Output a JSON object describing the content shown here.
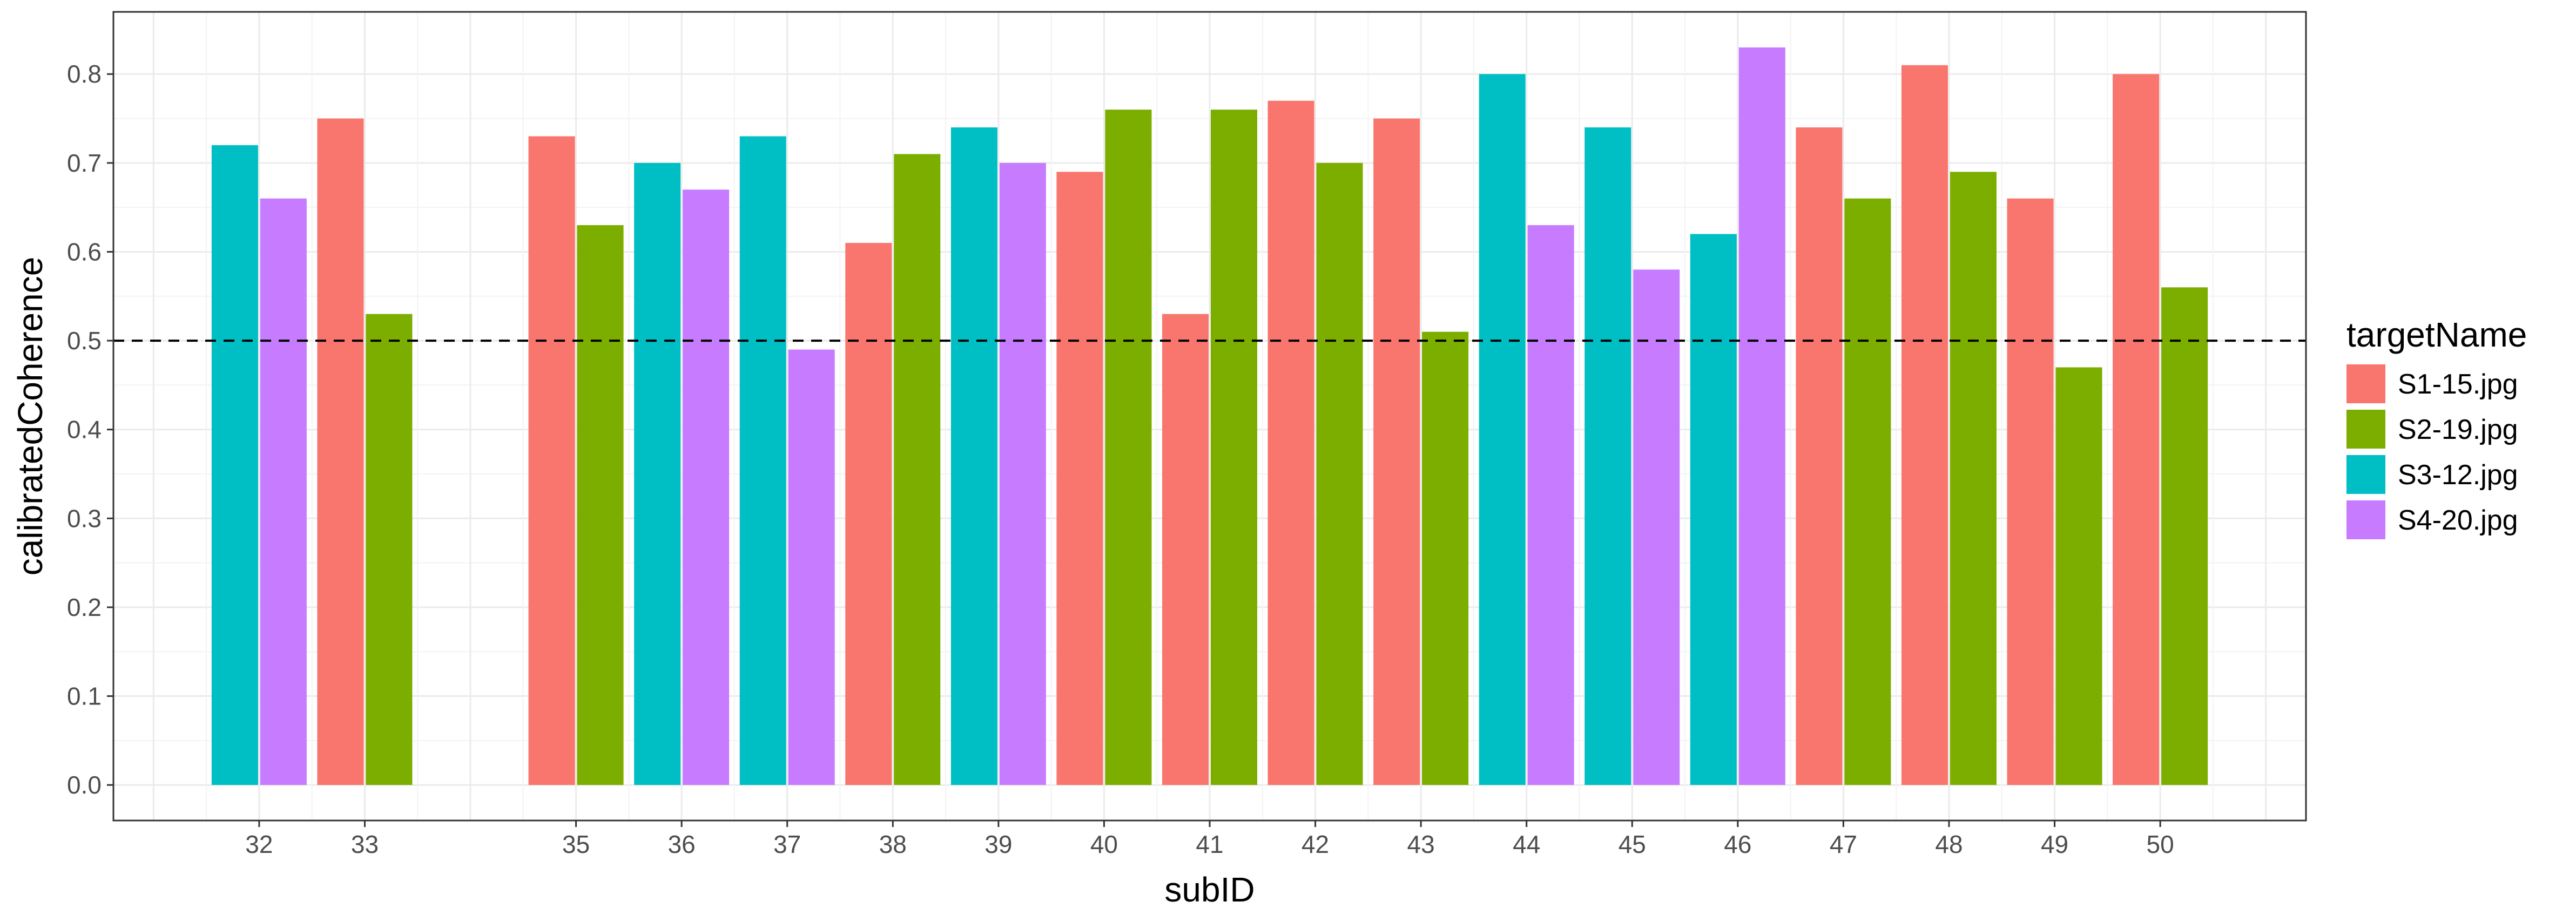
{
  "chart_data": {
    "type": "bar",
    "xlabel": "subID",
    "ylabel": "calibratedCoherence",
    "ylim": [
      -0.04,
      0.87
    ],
    "yticks": [
      "0.0",
      "0.1",
      "0.2",
      "0.3",
      "0.4",
      "0.5",
      "0.6",
      "0.7",
      "0.8"
    ],
    "xlim": [
      30.62,
      51.38
    ],
    "reference_line": {
      "y": 0.5,
      "style": "dashed"
    },
    "grid": true,
    "legend": {
      "title": "targetName",
      "position": "right",
      "entries": [
        {
          "name": "S1-15.jpg",
          "color": "#F8766D"
        },
        {
          "name": "S2-19.jpg",
          "color": "#7CAE00"
        },
        {
          "name": "S3-12.jpg",
          "color": "#00BFC4"
        },
        {
          "name": "S4-20.jpg",
          "color": "#C77CFF"
        }
      ]
    },
    "categories": [
      "32",
      "33",
      "35",
      "36",
      "37",
      "38",
      "39",
      "40",
      "41",
      "42",
      "43",
      "44",
      "45",
      "46",
      "47",
      "48",
      "49",
      "50"
    ],
    "groups": [
      {
        "subID": 32,
        "bars": [
          {
            "series": "S3-12.jpg",
            "value": 0.72
          },
          {
            "series": "S4-20.jpg",
            "value": 0.66
          }
        ]
      },
      {
        "subID": 33,
        "bars": [
          {
            "series": "S1-15.jpg",
            "value": 0.75
          },
          {
            "series": "S2-19.jpg",
            "value": 0.53
          }
        ]
      },
      {
        "subID": 35,
        "bars": [
          {
            "series": "S1-15.jpg",
            "value": 0.73
          },
          {
            "series": "S2-19.jpg",
            "value": 0.63
          }
        ]
      },
      {
        "subID": 36,
        "bars": [
          {
            "series": "S3-12.jpg",
            "value": 0.7
          },
          {
            "series": "S4-20.jpg",
            "value": 0.67
          }
        ]
      },
      {
        "subID": 37,
        "bars": [
          {
            "series": "S3-12.jpg",
            "value": 0.73
          },
          {
            "series": "S4-20.jpg",
            "value": 0.49
          }
        ]
      },
      {
        "subID": 38,
        "bars": [
          {
            "series": "S1-15.jpg",
            "value": 0.61
          },
          {
            "series": "S2-19.jpg",
            "value": 0.71
          }
        ]
      },
      {
        "subID": 39,
        "bars": [
          {
            "series": "S3-12.jpg",
            "value": 0.74
          },
          {
            "series": "S4-20.jpg",
            "value": 0.7
          }
        ]
      },
      {
        "subID": 40,
        "bars": [
          {
            "series": "S1-15.jpg",
            "value": 0.69
          },
          {
            "series": "S2-19.jpg",
            "value": 0.76
          }
        ]
      },
      {
        "subID": 41,
        "bars": [
          {
            "series": "S1-15.jpg",
            "value": 0.53
          },
          {
            "series": "S2-19.jpg",
            "value": 0.76
          }
        ]
      },
      {
        "subID": 42,
        "bars": [
          {
            "series": "S1-15.jpg",
            "value": 0.77
          },
          {
            "series": "S2-19.jpg",
            "value": 0.7
          }
        ]
      },
      {
        "subID": 43,
        "bars": [
          {
            "series": "S1-15.jpg",
            "value": 0.75
          },
          {
            "series": "S2-19.jpg",
            "value": 0.51
          }
        ]
      },
      {
        "subID": 44,
        "bars": [
          {
            "series": "S3-12.jpg",
            "value": 0.8
          },
          {
            "series": "S4-20.jpg",
            "value": 0.63
          }
        ]
      },
      {
        "subID": 45,
        "bars": [
          {
            "series": "S3-12.jpg",
            "value": 0.74
          },
          {
            "series": "S4-20.jpg",
            "value": 0.58
          }
        ]
      },
      {
        "subID": 46,
        "bars": [
          {
            "series": "S3-12.jpg",
            "value": 0.62
          },
          {
            "series": "S4-20.jpg",
            "value": 0.83
          }
        ]
      },
      {
        "subID": 47,
        "bars": [
          {
            "series": "S1-15.jpg",
            "value": 0.74
          },
          {
            "series": "S2-19.jpg",
            "value": 0.66
          }
        ]
      },
      {
        "subID": 48,
        "bars": [
          {
            "series": "S1-15.jpg",
            "value": 0.81
          },
          {
            "series": "S2-19.jpg",
            "value": 0.69
          }
        ]
      },
      {
        "subID": 49,
        "bars": [
          {
            "series": "S1-15.jpg",
            "value": 0.66
          },
          {
            "series": "S2-19.jpg",
            "value": 0.47
          }
        ]
      },
      {
        "subID": 50,
        "bars": [
          {
            "series": "S1-15.jpg",
            "value": 0.8
          },
          {
            "series": "S2-19.jpg",
            "value": 0.56
          }
        ]
      }
    ]
  }
}
